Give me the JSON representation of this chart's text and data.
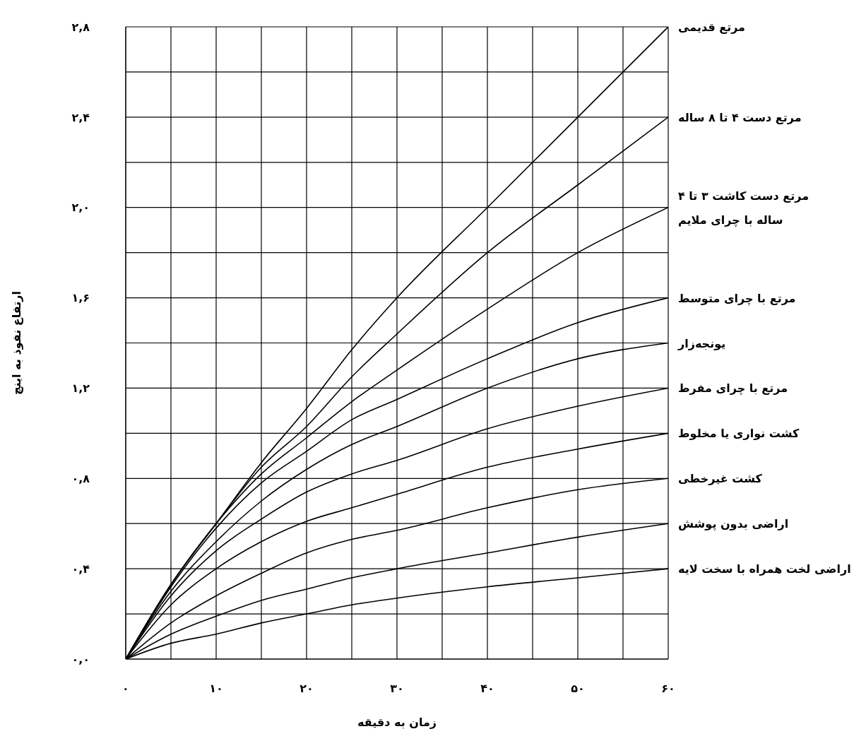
{
  "chart_data": {
    "type": "line",
    "xlabel": "زمان به دقیقه",
    "ylabel": "ارتفاع نفوذ به اینچ",
    "x": [
      0,
      5,
      10,
      15,
      20,
      25,
      30,
      40,
      50,
      60
    ],
    "series": [
      {
        "name": "مرتع قدیمی",
        "color": "#000000",
        "values": [
          0,
          0.33,
          0.6,
          0.87,
          1.11,
          1.37,
          1.6,
          2.0,
          2.4,
          2.8
        ]
      },
      {
        "name": "مرتع دست ۴ تا ۸ ساله",
        "color": "#000000",
        "values": [
          0,
          0.33,
          0.6,
          0.85,
          1.03,
          1.25,
          1.44,
          1.8,
          2.1,
          2.4
        ]
      },
      {
        "name": "مرتع دست کاشت ۳ تا ۴ ساله با چرای ملایم",
        "color": "#000000",
        "values": [
          0,
          0.33,
          0.6,
          0.82,
          0.98,
          1.14,
          1.28,
          1.55,
          1.8,
          2.0
        ]
      },
      {
        "name": "مرتع با چرای متوسط",
        "color": "#000000",
        "values": [
          0,
          0.32,
          0.58,
          0.78,
          0.92,
          1.06,
          1.15,
          1.33,
          1.49,
          1.6
        ]
      },
      {
        "name": "یونجه‌زار",
        "color": "#000000",
        "values": [
          0,
          0.3,
          0.52,
          0.7,
          0.84,
          0.95,
          1.03,
          1.2,
          1.33,
          1.4
        ]
      },
      {
        "name": "مرتع با چرای مفرط",
        "color": "#000000",
        "values": [
          0,
          0.28,
          0.48,
          0.62,
          0.74,
          0.82,
          0.88,
          1.02,
          1.12,
          1.2
        ]
      },
      {
        "name": "کشت نواری یا مخلوط",
        "color": "#000000",
        "values": [
          0,
          0.24,
          0.4,
          0.52,
          0.61,
          0.67,
          0.73,
          0.85,
          0.93,
          1.0
        ]
      },
      {
        "name": "کشت غیرخطی",
        "color": "#000000",
        "values": [
          0,
          0.16,
          0.28,
          0.38,
          0.47,
          0.53,
          0.57,
          0.67,
          0.75,
          0.8
        ]
      },
      {
        "name": "اراضی بدون پوشش",
        "color": "#000000",
        "values": [
          0,
          0.11,
          0.19,
          0.26,
          0.31,
          0.36,
          0.4,
          0.47,
          0.54,
          0.6
        ]
      },
      {
        "name": "اراضی لخت همراه با سخت لایه",
        "color": "#000000",
        "values": [
          0,
          0.07,
          0.11,
          0.16,
          0.2,
          0.24,
          0.27,
          0.32,
          0.36,
          0.4
        ]
      }
    ],
    "xlim": [
      0,
      60
    ],
    "xticks": [
      {
        "value": 0,
        "label": "۰"
      },
      {
        "value": 5,
        "label": null
      },
      {
        "value": 10,
        "label": "۱۰"
      },
      {
        "value": 15,
        "label": null
      },
      {
        "value": 20,
        "label": "۲۰"
      },
      {
        "value": 25,
        "label": null
      },
      {
        "value": 30,
        "label": "۳۰"
      },
      {
        "value": 35,
        "label": null
      },
      {
        "value": 40,
        "label": "۴۰"
      },
      {
        "value": 45,
        "label": null
      },
      {
        "value": 50,
        "label": "۵۰"
      },
      {
        "value": 55,
        "label": null
      },
      {
        "value": 60,
        "label": "۶۰"
      }
    ],
    "ylim": [
      0,
      2.8
    ],
    "yticks": [
      {
        "value": 0,
        "label": "۰,۰"
      },
      {
        "value": 0.2,
        "label": null
      },
      {
        "value": 0.4,
        "label": "۰,۴"
      },
      {
        "value": 0.6,
        "label": null
      },
      {
        "value": 0.8,
        "label": "۰,۸"
      },
      {
        "value": 1.0,
        "label": null
      },
      {
        "value": 1.2,
        "label": "۱,۲"
      },
      {
        "value": 1.4,
        "label": null
      },
      {
        "value": 1.6,
        "label": "۱,۶"
      },
      {
        "value": 1.8,
        "label": null
      },
      {
        "value": 2.0,
        "label": "۲,۰"
      },
      {
        "value": 2.2,
        "label": null
      },
      {
        "value": 2.4,
        "label": "۲,۴"
      },
      {
        "value": 2.6,
        "label": null
      },
      {
        "value": 2.8,
        "label": "۲,۸"
      }
    ],
    "grid": true,
    "marker": "none",
    "line_style": "solid"
  }
}
